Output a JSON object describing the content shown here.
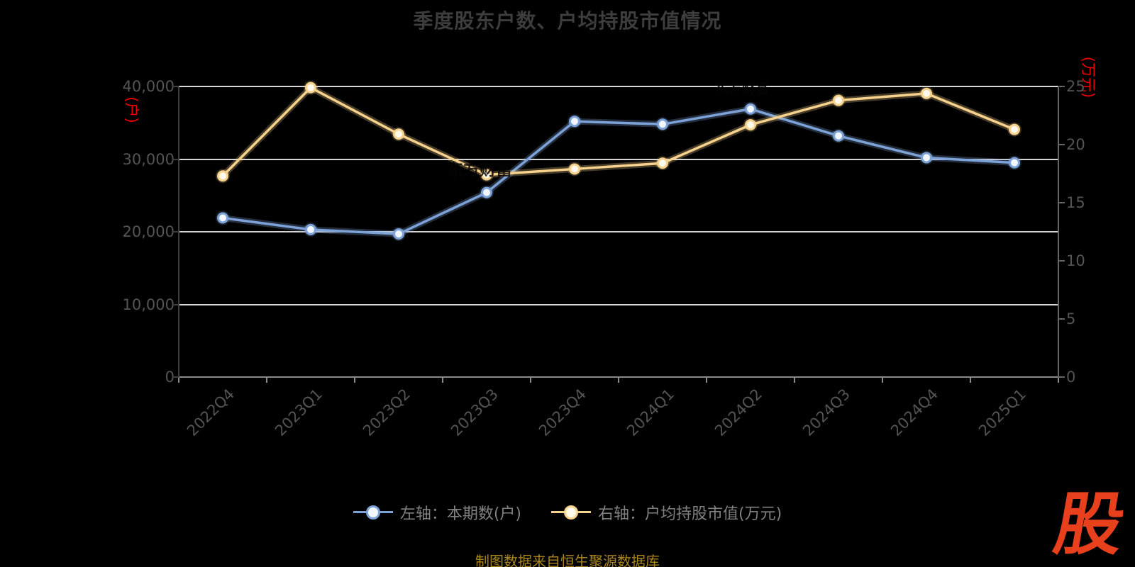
{
  "title": "季度股东户数、户均持股市值情况",
  "chart_data": {
    "type": "line",
    "categories": [
      "2022Q4",
      "2023Q1",
      "2023Q2",
      "2023Q3",
      "2023Q4",
      "2024Q1",
      "2024Q2",
      "2024Q3",
      "2024Q4",
      "2025Q1"
    ],
    "series": [
      {
        "name": "左轴：本期数(户)",
        "axis": "left",
        "color": "#7da2d8",
        "marker_fill": "#f2f7ff",
        "values": [
          21900,
          20300,
          19700,
          25400,
          35200,
          34800,
          36900,
          33200,
          30200,
          29500
        ]
      },
      {
        "name": "右轴：户均持股市值(万元)",
        "axis": "right",
        "color": "#f6d28c",
        "marker_fill": "#fff9ec",
        "values": [
          17.3,
          24.9,
          20.9,
          17.4,
          17.9,
          18.4,
          21.7,
          23.8,
          24.4,
          21.3
        ]
      }
    ],
    "left_axis": {
      "name": "(户)",
      "min": 0,
      "max": 40000,
      "tick_labels": [
        "0",
        "10,000",
        "20,000",
        "30,000",
        "40,000"
      ]
    },
    "right_axis": {
      "name": "(万元)",
      "min": 0,
      "max": 25,
      "tick_labels": [
        "0",
        "5",
        "10",
        "15",
        "20",
        "25"
      ]
    },
    "grid": true,
    "legend_position": "bottom"
  },
  "watermarks": {
    "upper": "东方财富",
    "lower": "东方财富"
  },
  "footer": {
    "source_note": "制图数据来自恒生聚源数据库"
  },
  "logo_text": "股"
}
